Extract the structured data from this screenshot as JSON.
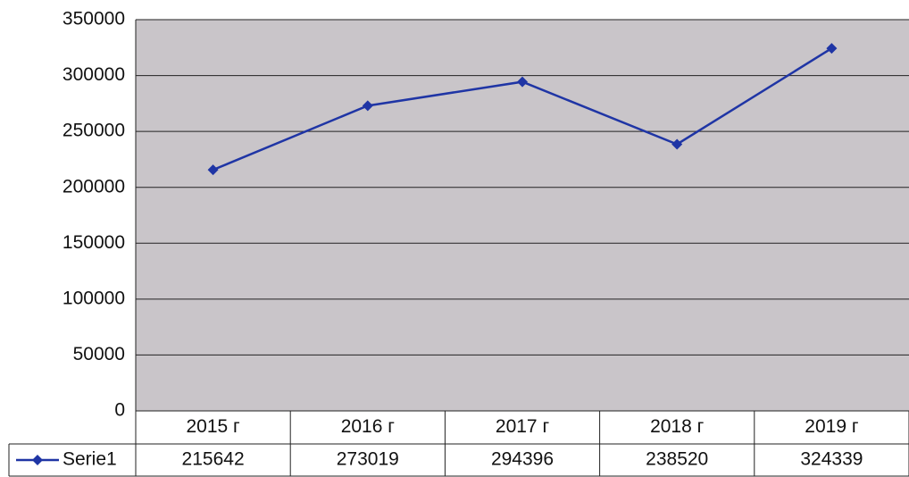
{
  "chart_data": {
    "type": "line",
    "categories": [
      "2015 г",
      "2016 г",
      "2017 г",
      "2018 г",
      "2019 г"
    ],
    "series": [
      {
        "name": "Serie1",
        "color": "#1f35a5",
        "values": [
          215642,
          273019,
          294396,
          238520,
          324339
        ]
      }
    ],
    "ylim": [
      0,
      350000
    ],
    "yticks": [
      0,
      50000,
      100000,
      150000,
      200000,
      250000,
      300000,
      350000
    ],
    "grid": true,
    "data_table": true
  }
}
